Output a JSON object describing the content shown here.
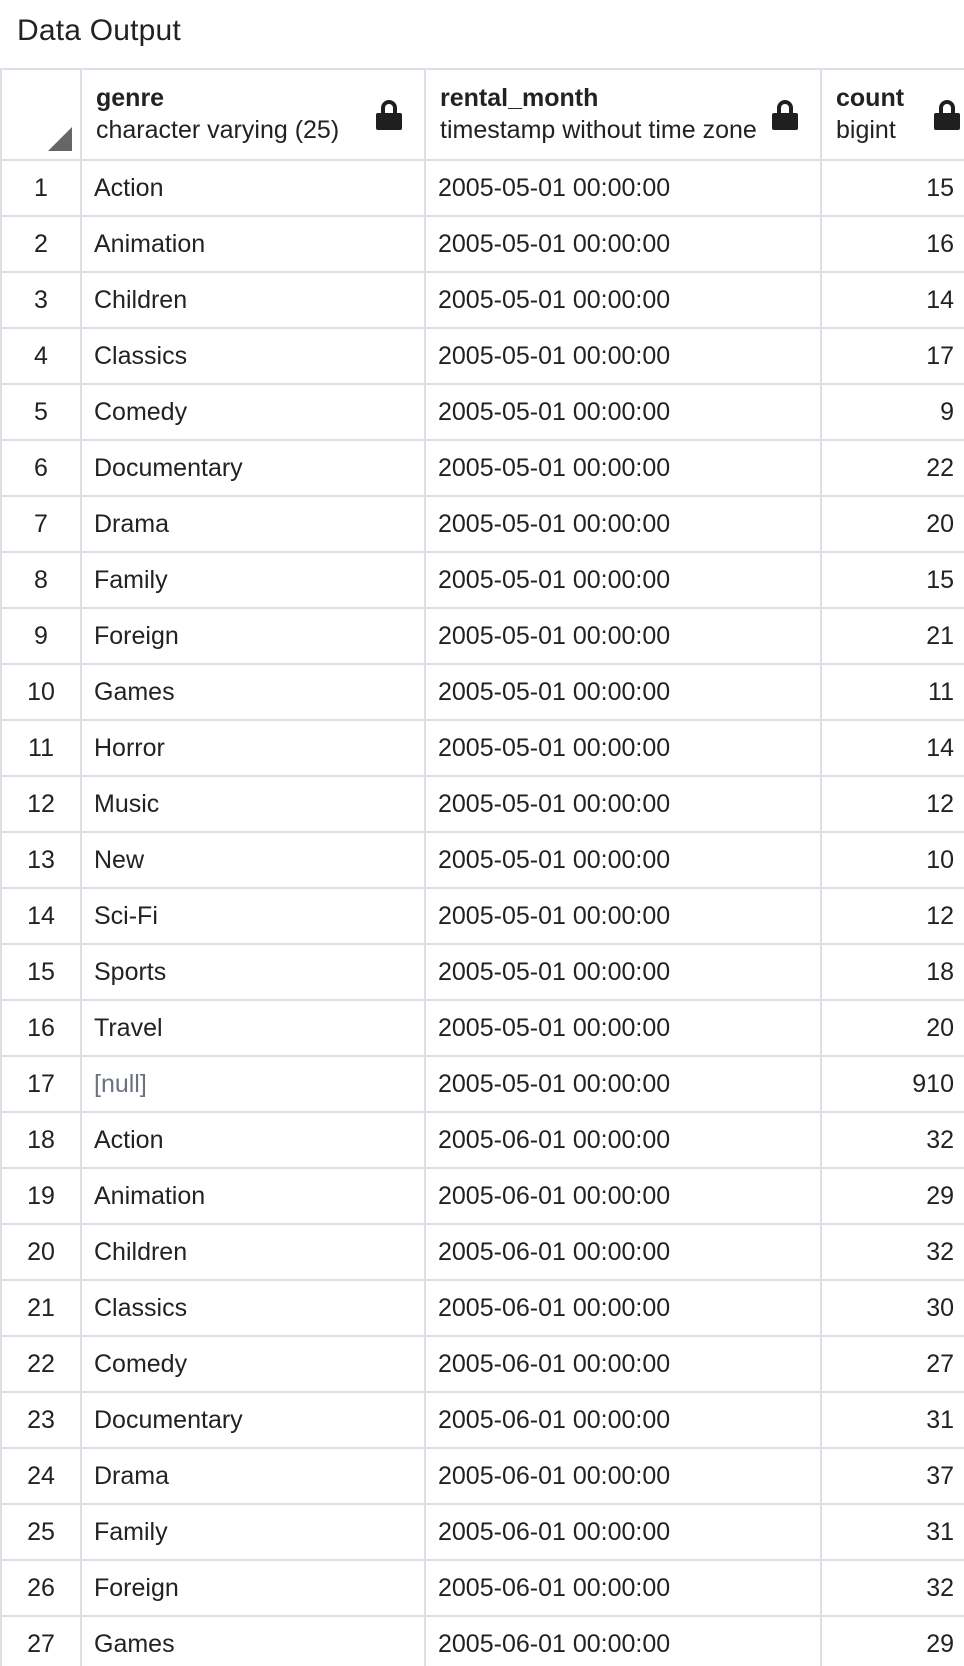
{
  "panel": {
    "title": "Data Output"
  },
  "columns": [
    {
      "name": "genre",
      "type": "character varying (25)",
      "icon": "lock-icon"
    },
    {
      "name": "rental_month",
      "type": "timestamp without time zone",
      "icon": "lock-icon"
    },
    {
      "name": "count",
      "type": "bigint",
      "icon": "lock-icon"
    }
  ],
  "rows": [
    {
      "idx": "1",
      "genre": "Action",
      "rental_month": "2005-05-01 00:00:00",
      "count": "15"
    },
    {
      "idx": "2",
      "genre": "Animation",
      "rental_month": "2005-05-01 00:00:00",
      "count": "16"
    },
    {
      "idx": "3",
      "genre": "Children",
      "rental_month": "2005-05-01 00:00:00",
      "count": "14"
    },
    {
      "idx": "4",
      "genre": "Classics",
      "rental_month": "2005-05-01 00:00:00",
      "count": "17"
    },
    {
      "idx": "5",
      "genre": "Comedy",
      "rental_month": "2005-05-01 00:00:00",
      "count": "9"
    },
    {
      "idx": "6",
      "genre": "Documentary",
      "rental_month": "2005-05-01 00:00:00",
      "count": "22"
    },
    {
      "idx": "7",
      "genre": "Drama",
      "rental_month": "2005-05-01 00:00:00",
      "count": "20"
    },
    {
      "idx": "8",
      "genre": "Family",
      "rental_month": "2005-05-01 00:00:00",
      "count": "15"
    },
    {
      "idx": "9",
      "genre": "Foreign",
      "rental_month": "2005-05-01 00:00:00",
      "count": "21"
    },
    {
      "idx": "10",
      "genre": "Games",
      "rental_month": "2005-05-01 00:00:00",
      "count": "11"
    },
    {
      "idx": "11",
      "genre": "Horror",
      "rental_month": "2005-05-01 00:00:00",
      "count": "14"
    },
    {
      "idx": "12",
      "genre": "Music",
      "rental_month": "2005-05-01 00:00:00",
      "count": "12"
    },
    {
      "idx": "13",
      "genre": "New",
      "rental_month": "2005-05-01 00:00:00",
      "count": "10"
    },
    {
      "idx": "14",
      "genre": "Sci-Fi",
      "rental_month": "2005-05-01 00:00:00",
      "count": "12"
    },
    {
      "idx": "15",
      "genre": "Sports",
      "rental_month": "2005-05-01 00:00:00",
      "count": "18"
    },
    {
      "idx": "16",
      "genre": "Travel",
      "rental_month": "2005-05-01 00:00:00",
      "count": "20"
    },
    {
      "idx": "17",
      "genre": "[null]",
      "rental_month": "2005-05-01 00:00:00",
      "count": "910"
    },
    {
      "idx": "18",
      "genre": "Action",
      "rental_month": "2005-06-01 00:00:00",
      "count": "32"
    },
    {
      "idx": "19",
      "genre": "Animation",
      "rental_month": "2005-06-01 00:00:00",
      "count": "29"
    },
    {
      "idx": "20",
      "genre": "Children",
      "rental_month": "2005-06-01 00:00:00",
      "count": "32"
    },
    {
      "idx": "21",
      "genre": "Classics",
      "rental_month": "2005-06-01 00:00:00",
      "count": "30"
    },
    {
      "idx": "22",
      "genre": "Comedy",
      "rental_month": "2005-06-01 00:00:00",
      "count": "27"
    },
    {
      "idx": "23",
      "genre": "Documentary",
      "rental_month": "2005-06-01 00:00:00",
      "count": "31"
    },
    {
      "idx": "24",
      "genre": "Drama",
      "rental_month": "2005-06-01 00:00:00",
      "count": "37"
    },
    {
      "idx": "25",
      "genre": "Family",
      "rental_month": "2005-06-01 00:00:00",
      "count": "31"
    },
    {
      "idx": "26",
      "genre": "Foreign",
      "rental_month": "2005-06-01 00:00:00",
      "count": "32"
    },
    {
      "idx": "27",
      "genre": "Games",
      "rental_month": "2005-06-01 00:00:00",
      "count": "29"
    }
  ],
  "colors": {
    "grid_line": "#dde0e6",
    "text": "#222222",
    "null_text": "#6b7280",
    "icon": "#1f1f1f"
  }
}
